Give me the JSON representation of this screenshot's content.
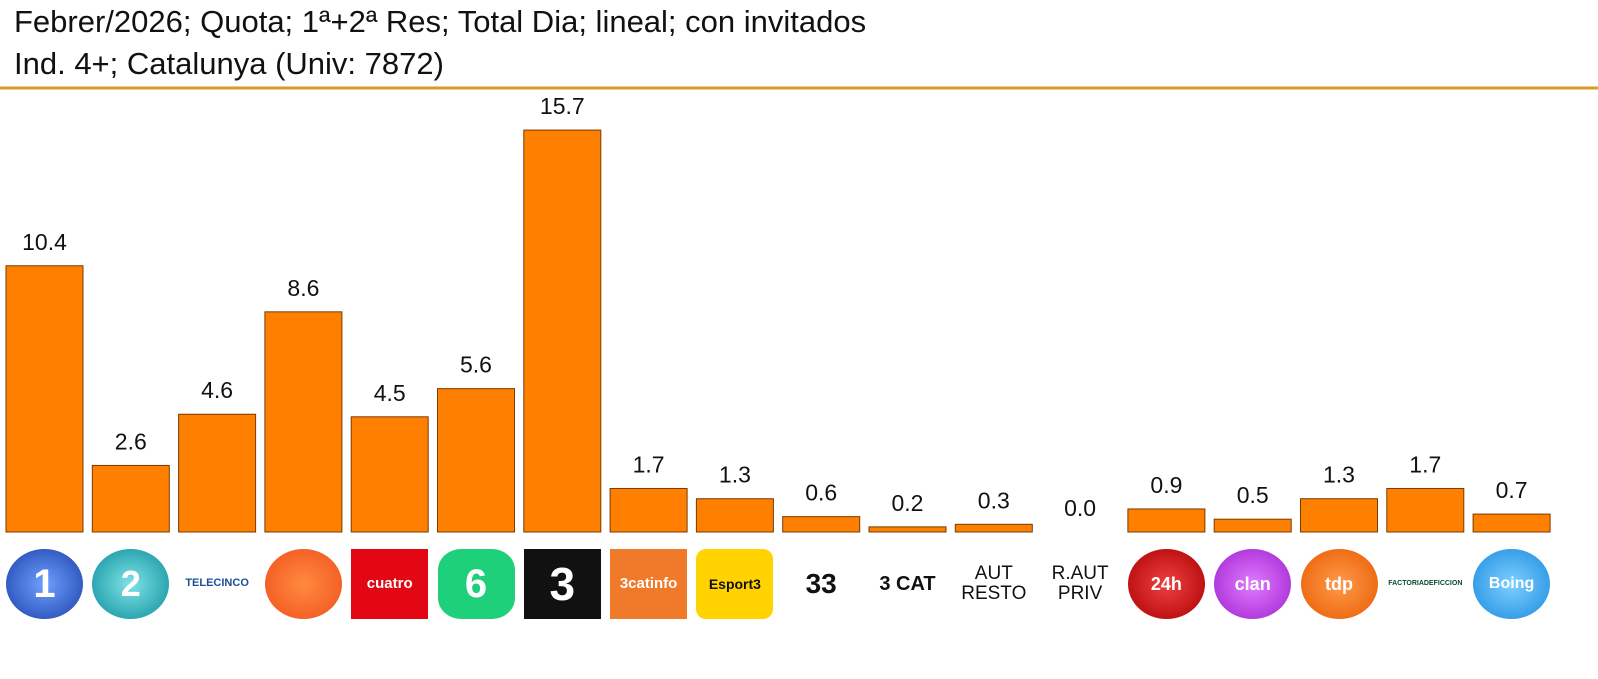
{
  "chart_data": {
    "type": "bar",
    "title": "Febrer/2026; Quota; 1ª+2ª Res; Total Dia; lineal; con invitados",
    "subtitle": "Ind. 4+; Catalunya (Univ: 7872)",
    "categories": [
      "1",
      "2",
      "TELECINCO",
      null,
      "cuatro",
      "6",
      "3",
      "3catinfo",
      "Esport3",
      "33",
      "3 CAT",
      "AUT RESTO",
      "R.AUT PRIV",
      "24h",
      "clan",
      "tdp",
      "FACTORIADEFICCION",
      "Boing"
    ],
    "values": [
      10.4,
      2.6,
      4.6,
      8.6,
      4.5,
      5.6,
      15.7,
      1.7,
      1.3,
      0.6,
      0.2,
      0.3,
      0.0,
      0.9,
      0.5,
      1.3,
      1.7,
      0.7
    ],
    "value_labels": [
      "10.4",
      "2.6",
      "4.6",
      "8.6",
      "4.5",
      "5.6",
      "15.7",
      "1.7",
      "1.3",
      "0.6",
      "0.2",
      "0.3",
      "0.0",
      "0.9",
      "0.5",
      "1.3",
      "1.7",
      "0.7"
    ],
    "color": "#ff8000",
    "ylim": [
      0,
      16
    ]
  }
}
